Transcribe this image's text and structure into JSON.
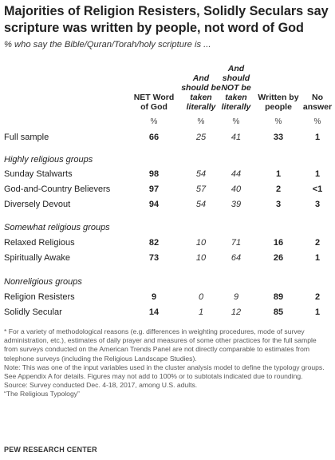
{
  "title": "Majorities of Religion Resisters, Solidly Seculars say scripture was written by people, not word of God",
  "subtitle": "% who say the Bible/Quran/Torah/holy scripture is ...",
  "chart_data": {
    "type": "table",
    "columns": [
      {
        "label": "NET Word of God",
        "lines": [
          "NET Word",
          "of God"
        ],
        "style": "bold"
      },
      {
        "label": "And should be taken literally",
        "lines": [
          "And",
          "should be",
          "taken",
          "literally"
        ],
        "style": "italic"
      },
      {
        "label": "And should NOT be taken literally",
        "lines": [
          "And",
          "should",
          "NOT be",
          "taken",
          "literally"
        ],
        "style": "italic"
      },
      {
        "label": "Written by people",
        "lines": [
          "Written by",
          "people"
        ],
        "style": "bold"
      },
      {
        "label": "No answer",
        "lines": [
          "No",
          "answer"
        ],
        "style": "bold"
      }
    ],
    "unit_row": [
      "%",
      "%",
      "%",
      "%",
      "%"
    ],
    "sections": [
      {
        "heading": "",
        "rows": [
          {
            "label": "Full sample",
            "values": [
              "66",
              "25",
              "41",
              "33",
              "1"
            ]
          }
        ]
      },
      {
        "heading": "Highly religious groups",
        "rows": [
          {
            "label": "Sunday Stalwarts",
            "values": [
              "98",
              "54",
              "44",
              "1",
              "1"
            ]
          },
          {
            "label": "God-and-Country Believers",
            "values": [
              "97",
              "57",
              "40",
              "2",
              "<1"
            ]
          },
          {
            "label": "Diversely Devout",
            "values": [
              "94",
              "54",
              "39",
              "3",
              "3"
            ]
          }
        ]
      },
      {
        "heading": "Somewhat religious groups",
        "rows": [
          {
            "label": "Relaxed Religious",
            "values": [
              "82",
              "10",
              "71",
              "16",
              "2"
            ]
          },
          {
            "label": "Spiritually Awake",
            "values": [
              "73",
              "10",
              "64",
              "26",
              "1"
            ]
          }
        ]
      },
      {
        "heading": "Nonreligious groups",
        "rows": [
          {
            "label": "Religion Resisters",
            "values": [
              "9",
              "0",
              "9",
              "89",
              "2"
            ]
          },
          {
            "label": "Solidly Secular",
            "values": [
              "14",
              "1",
              "12",
              "85",
              "1"
            ]
          }
        ]
      }
    ]
  },
  "notes": {
    "footnote": "* For a variety of methodological reasons (e.g. differences in weighting procedures, mode of survey administration, etc.), estimates of daily prayer and measures of some other practices for the full sample from surveys conducted on the American Trends Panel are not directly comparable to estimates from telephone surveys (including the Religious Landscape Studies).",
    "note": "Note: This was one of the input variables used in the cluster analysis model to define the typology groups. See Appendix A for details. Figures may not add to 100% or to subtotals indicated due to rounding.",
    "source": "Source: Survey conducted Dec. 4-18, 2017, among U.S. adults.",
    "report": "“The Religious Typology”"
  },
  "logo": "PEW RESEARCH CENTER"
}
